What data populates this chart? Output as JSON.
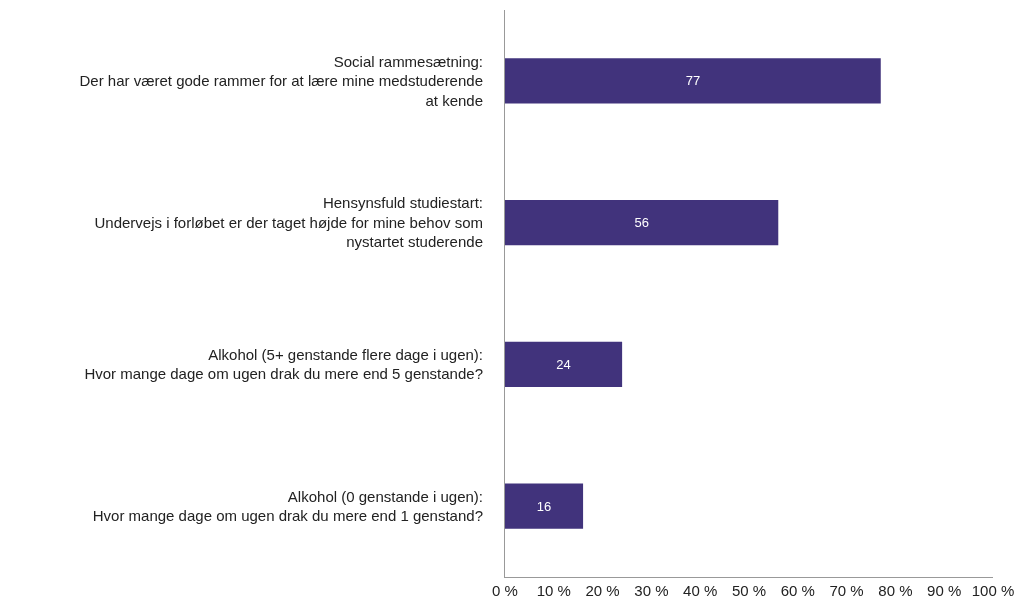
{
  "chart_data": {
    "type": "bar",
    "orientation": "horizontal",
    "categories": [
      "Social rammesætning:\nDer har været gode rammer for at lære mine medstuderende\nat kende",
      "Hensynsfuld studiestart:\nUndervejs i forløbet er der taget højde for mine behov som\nnystartet studerende",
      "Alkohol (5+ genstande flere dage i ugen):\nHvor mange dage om ugen drak du mere end 5 genstande?",
      "Alkohol (0 genstande i ugen):\nHvor mange dage om ugen drak du mere end 1 genstand?"
    ],
    "values": [
      77,
      56,
      24,
      16
    ],
    "color": "#41337c",
    "data_labels": true,
    "xlim": [
      0,
      100
    ],
    "xticks": [
      {
        "value": 0,
        "label": "0 %"
      },
      {
        "value": 10,
        "label": "10 %"
      },
      {
        "value": 20,
        "label": "20 %"
      },
      {
        "value": 30,
        "label": "30 %"
      },
      {
        "value": 40,
        "label": "40 %"
      },
      {
        "value": 50,
        "label": "50 %"
      },
      {
        "value": 60,
        "label": "60 %"
      },
      {
        "value": 70,
        "label": "70 %"
      },
      {
        "value": 80,
        "label": "80 %"
      },
      {
        "value": 90,
        "label": "90 %"
      },
      {
        "value": 100,
        "label": "100 %"
      }
    ]
  }
}
